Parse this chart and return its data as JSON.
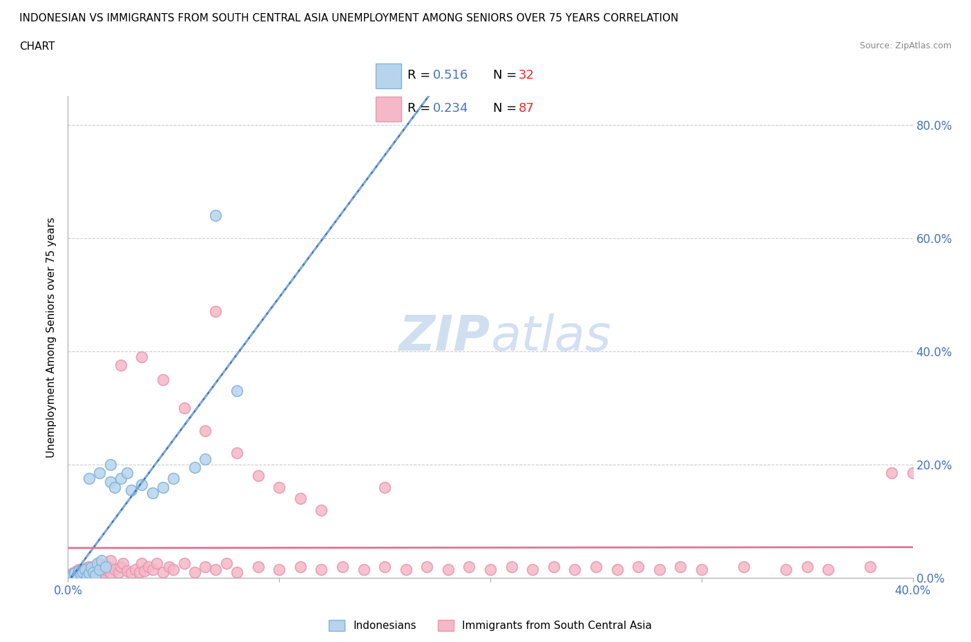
{
  "title_line1": "INDONESIAN VS IMMIGRANTS FROM SOUTH CENTRAL ASIA UNEMPLOYMENT AMONG SENIORS OVER 75 YEARS CORRELATION",
  "title_line2": "CHART",
  "source": "Source: ZipAtlas.com",
  "ylabel": "Unemployment Among Seniors over 75 years",
  "xmin": 0.0,
  "xmax": 0.4,
  "ymin": 0.0,
  "ymax": 0.85,
  "yticks": [
    0.0,
    0.2,
    0.4,
    0.6,
    0.8
  ],
  "ytick_labels": [
    "0.0%",
    "20.0%",
    "40.0%",
    "60.0%",
    "80.0%"
  ],
  "color_indonesian_fill": "#b8d4ed",
  "color_indonesian_edge": "#7fb3d9",
  "color_immigrant_fill": "#f5b8c8",
  "color_immigrant_edge": "#e896b0",
  "color_line_indo": "#4472c4",
  "color_line_indo_dash": "#7fb3d9",
  "color_line_immig": "#e87090",
  "color_text_blue": "#4472c4",
  "color_text_red": "#ff2222",
  "watermark_color": "#d0dff0",
  "indonesian_x": [
    0.002,
    0.003,
    0.004,
    0.005,
    0.006,
    0.007,
    0.008,
    0.009,
    0.01,
    0.011,
    0.012,
    0.013,
    0.014,
    0.015,
    0.016,
    0.018,
    0.02,
    0.022,
    0.025,
    0.028,
    0.03,
    0.035,
    0.04,
    0.045,
    0.05,
    0.06,
    0.065,
    0.01,
    0.015,
    0.02,
    0.08,
    0.07
  ],
  "indonesian_y": [
    0.005,
    0.008,
    0.003,
    0.012,
    0.006,
    0.01,
    0.015,
    0.004,
    0.008,
    0.018,
    0.01,
    0.005,
    0.025,
    0.015,
    0.03,
    0.02,
    0.17,
    0.16,
    0.175,
    0.185,
    0.155,
    0.165,
    0.15,
    0.16,
    0.175,
    0.195,
    0.21,
    0.175,
    0.185,
    0.2,
    0.33,
    0.64
  ],
  "immigrant_x": [
    0.001,
    0.002,
    0.003,
    0.004,
    0.005,
    0.005,
    0.006,
    0.007,
    0.008,
    0.009,
    0.01,
    0.01,
    0.011,
    0.012,
    0.013,
    0.014,
    0.015,
    0.015,
    0.016,
    0.017,
    0.018,
    0.019,
    0.02,
    0.02,
    0.022,
    0.024,
    0.025,
    0.026,
    0.028,
    0.03,
    0.032,
    0.034,
    0.035,
    0.036,
    0.038,
    0.04,
    0.042,
    0.045,
    0.048,
    0.05,
    0.055,
    0.06,
    0.065,
    0.07,
    0.075,
    0.08,
    0.09,
    0.1,
    0.11,
    0.12,
    0.13,
    0.14,
    0.15,
    0.16,
    0.17,
    0.18,
    0.19,
    0.2,
    0.21,
    0.22,
    0.23,
    0.24,
    0.25,
    0.26,
    0.27,
    0.28,
    0.29,
    0.3,
    0.32,
    0.34,
    0.35,
    0.36,
    0.38,
    0.39,
    0.4,
    0.025,
    0.035,
    0.045,
    0.055,
    0.065,
    0.07,
    0.08,
    0.09,
    0.1,
    0.11,
    0.12,
    0.15
  ],
  "immigrant_y": [
    0.003,
    0.008,
    0.005,
    0.012,
    0.004,
    0.015,
    0.008,
    0.01,
    0.006,
    0.018,
    0.005,
    0.02,
    0.012,
    0.008,
    0.015,
    0.01,
    0.005,
    0.025,
    0.012,
    0.008,
    0.015,
    0.02,
    0.008,
    0.03,
    0.015,
    0.01,
    0.02,
    0.025,
    0.012,
    0.008,
    0.015,
    0.01,
    0.025,
    0.012,
    0.02,
    0.015,
    0.025,
    0.01,
    0.02,
    0.015,
    0.025,
    0.01,
    0.02,
    0.015,
    0.025,
    0.01,
    0.02,
    0.015,
    0.02,
    0.015,
    0.02,
    0.015,
    0.02,
    0.015,
    0.02,
    0.015,
    0.02,
    0.015,
    0.02,
    0.015,
    0.02,
    0.015,
    0.02,
    0.015,
    0.02,
    0.015,
    0.02,
    0.015,
    0.02,
    0.015,
    0.02,
    0.015,
    0.02,
    0.185,
    0.185,
    0.375,
    0.39,
    0.35,
    0.3,
    0.26,
    0.47,
    0.22,
    0.18,
    0.16,
    0.14,
    0.12,
    0.16
  ]
}
